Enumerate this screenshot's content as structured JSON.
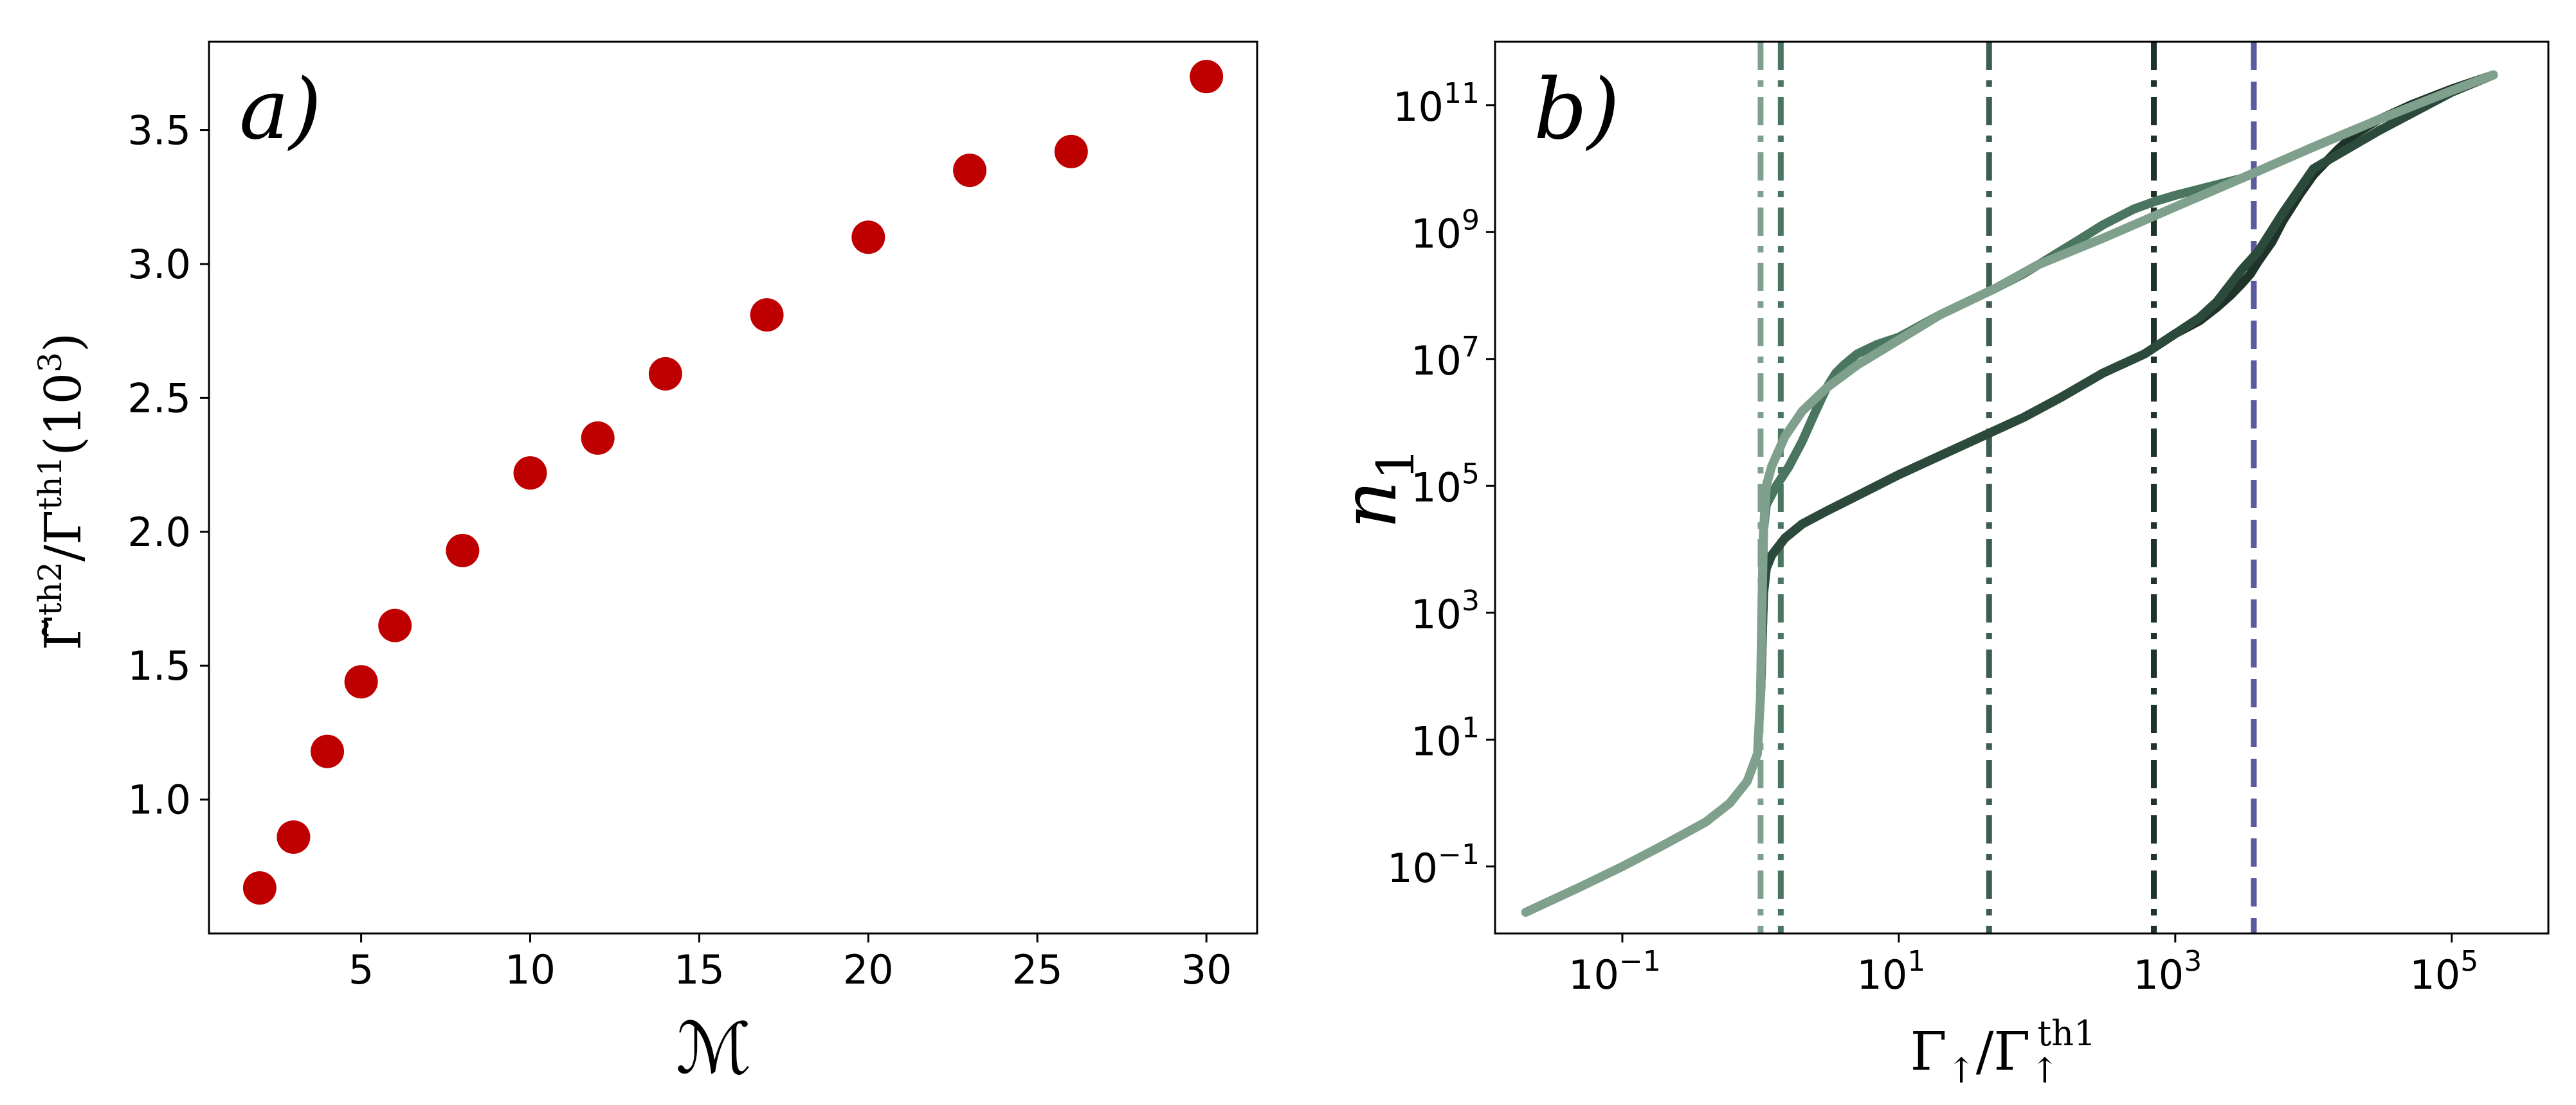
{
  "chart_data": [
    {
      "type": "scatter",
      "panel_label": "a)",
      "xlabel": "ℳ",
      "ylabel": {
        "main": "Γ̃",
        "sup1": "th2",
        "mid": "/Γ",
        "sup2": "th1",
        "tail": "(10",
        "tail_sup": "3",
        "close": ")"
      },
      "x": [
        2,
        3,
        4,
        5,
        6,
        8,
        10,
        12,
        14,
        17,
        20,
        23,
        26,
        30
      ],
      "y": [
        0.67,
        0.86,
        1.18,
        1.44,
        1.65,
        1.93,
        2.22,
        2.35,
        2.59,
        2.81,
        3.1,
        3.35,
        3.42,
        3.7
      ],
      "xlim": [
        0.5,
        31.5
      ],
      "ylim": [
        0.5,
        3.83
      ],
      "xticks": [
        "5",
        "10",
        "15",
        "20",
        "25",
        "30"
      ],
      "xtick_values": [
        5,
        10,
        15,
        20,
        25,
        30
      ],
      "yticks": [
        "1.0",
        "1.5",
        "2.0",
        "2.5",
        "3.0",
        "3.5"
      ],
      "ytick_values": [
        1.0,
        1.5,
        2.0,
        2.5,
        3.0,
        3.5
      ],
      "marker_color": "#bf0000",
      "grid": false
    },
    {
      "type": "line",
      "panel_label": "b)",
      "xscale": "log",
      "yscale": "log",
      "xlabel": {
        "main": "Γ",
        "mid": "/Γ",
        "sup": "th1"
      },
      "ylabel": {
        "main": "n",
        "sub": "1"
      },
      "xlim": [
        0.012,
        500000
      ],
      "ylim": [
        0.0088,
        1000000000000
      ],
      "xticks": [
        {
          "base": "10",
          "exp": "−1"
        },
        {
          "base": "10",
          "exp": "1"
        },
        {
          "base": "10",
          "exp": "3"
        },
        {
          "base": "10",
          "exp": "5"
        }
      ],
      "xtick_values": [
        0.1,
        10,
        1000,
        100000
      ],
      "yticks": [
        {
          "base": "10",
          "exp": "−1"
        },
        {
          "base": "10",
          "exp": "1"
        },
        {
          "base": "10",
          "exp": "3"
        },
        {
          "base": "10",
          "exp": "5"
        },
        {
          "base": "10",
          "exp": "7"
        },
        {
          "base": "10",
          "exp": "9"
        },
        {
          "base": "10",
          "exp": "11"
        }
      ],
      "ytick_values": [
        0.1,
        10,
        1000,
        100000,
        10000000,
        1000000000,
        100000000000
      ],
      "series": [
        {
          "color": "#7fa08d",
          "x": [
            0.02,
            0.05,
            0.1,
            0.2,
            0.4,
            0.6,
            0.8,
            0.95,
            1.0,
            1.02,
            1.05,
            1.1,
            1.2,
            1.5,
            2,
            3,
            5,
            10,
            20,
            50,
            100,
            300,
            1000,
            3000,
            10000,
            30000,
            100000,
            200000
          ],
          "y": [
            0.019,
            0.048,
            0.1,
            0.22,
            0.5,
            1.0,
            2.2,
            6,
            50,
            1000,
            20000,
            100000,
            200000,
            600000,
            1500000,
            3500000,
            8000000,
            20000000,
            50000000,
            130000000,
            300000000,
            800000000,
            2500000000,
            7000000000,
            22000000000,
            60000000000,
            170000000000,
            300000000000
          ]
        },
        {
          "color": "#4a7560",
          "x": [
            1.0,
            1.05,
            1.1,
            1.3,
            1.6,
            2,
            2.5,
            3,
            3.5,
            4,
            5,
            7,
            10,
            20,
            50,
            80,
            120,
            200,
            300,
            500,
            700,
            1000,
            3000,
            10000,
            30000,
            100000,
            200000
          ],
          "y": [
            50,
            20000,
            50000,
            100000,
            200000,
            500000,
            1500000,
            3500000,
            6000000,
            8000000,
            12000000,
            17000000,
            22000000,
            50000000,
            130000000,
            220000000,
            380000000,
            750000000,
            1300000000,
            2300000000,
            3000000000,
            3800000000,
            7000000000,
            22000000000,
            60000000000,
            170000000000,
            300000000000
          ]
        },
        {
          "color": "#2c4a3c",
          "x": [
            1.0,
            1.05,
            1.1,
            1.2,
            1.5,
            2,
            3,
            5,
            10,
            20,
            40,
            80,
            150,
            300,
            600,
            1000,
            1500,
            2000,
            2500,
            3000,
            4000,
            6000,
            10000,
            30000,
            100000,
            200000
          ],
          "y": [
            50,
            2000,
            5000,
            8000,
            15000,
            25000,
            40000,
            70000,
            150000,
            300000,
            600000,
            1200000,
            2500000,
            6000000,
            12000000,
            25000000,
            45000000,
            80000000,
            150000000,
            250000000,
            500000000,
            2000000000,
            10000000000,
            40000000000,
            160000000000,
            300000000000
          ]
        },
        {
          "color": "#1e3329",
          "x": [
            1.0,
            1.05,
            1.1,
            1.2,
            1.5,
            2,
            3,
            5,
            10,
            20,
            40,
            80,
            150,
            300,
            600,
            1000,
            1500,
            2000,
            2500,
            3000,
            3500,
            4000,
            5000,
            6000,
            8000,
            10000,
            15000,
            20000,
            30000,
            50000,
            100000,
            200000
          ],
          "y": [
            50,
            2000,
            5000,
            8000,
            15000,
            25000,
            40000,
            70000,
            150000,
            300000,
            600000,
            1200000,
            2500000,
            6000000,
            12000000,
            25000000,
            40000000,
            65000000,
            100000000,
            150000000,
            220000000,
            350000000,
            700000000,
            1500000000,
            4000000000,
            8000000000,
            20000000000,
            35000000000,
            60000000000,
            100000000000,
            180000000000,
            300000000000
          ]
        }
      ],
      "vlines": [
        {
          "x": 1.0,
          "color": "#7fa08d",
          "dash": "dashdot"
        },
        {
          "x": 1.4,
          "color": "#4a7560",
          "dash": "dashdot"
        },
        {
          "x": 45,
          "color": "#3d5e4e",
          "dash": "dashdot"
        },
        {
          "x": 700,
          "color": "#1e3329",
          "dash": "dashdot"
        },
        {
          "x": 3700,
          "color": "#5a5a9e",
          "dash": "dashed"
        }
      ],
      "grid": false
    }
  ]
}
